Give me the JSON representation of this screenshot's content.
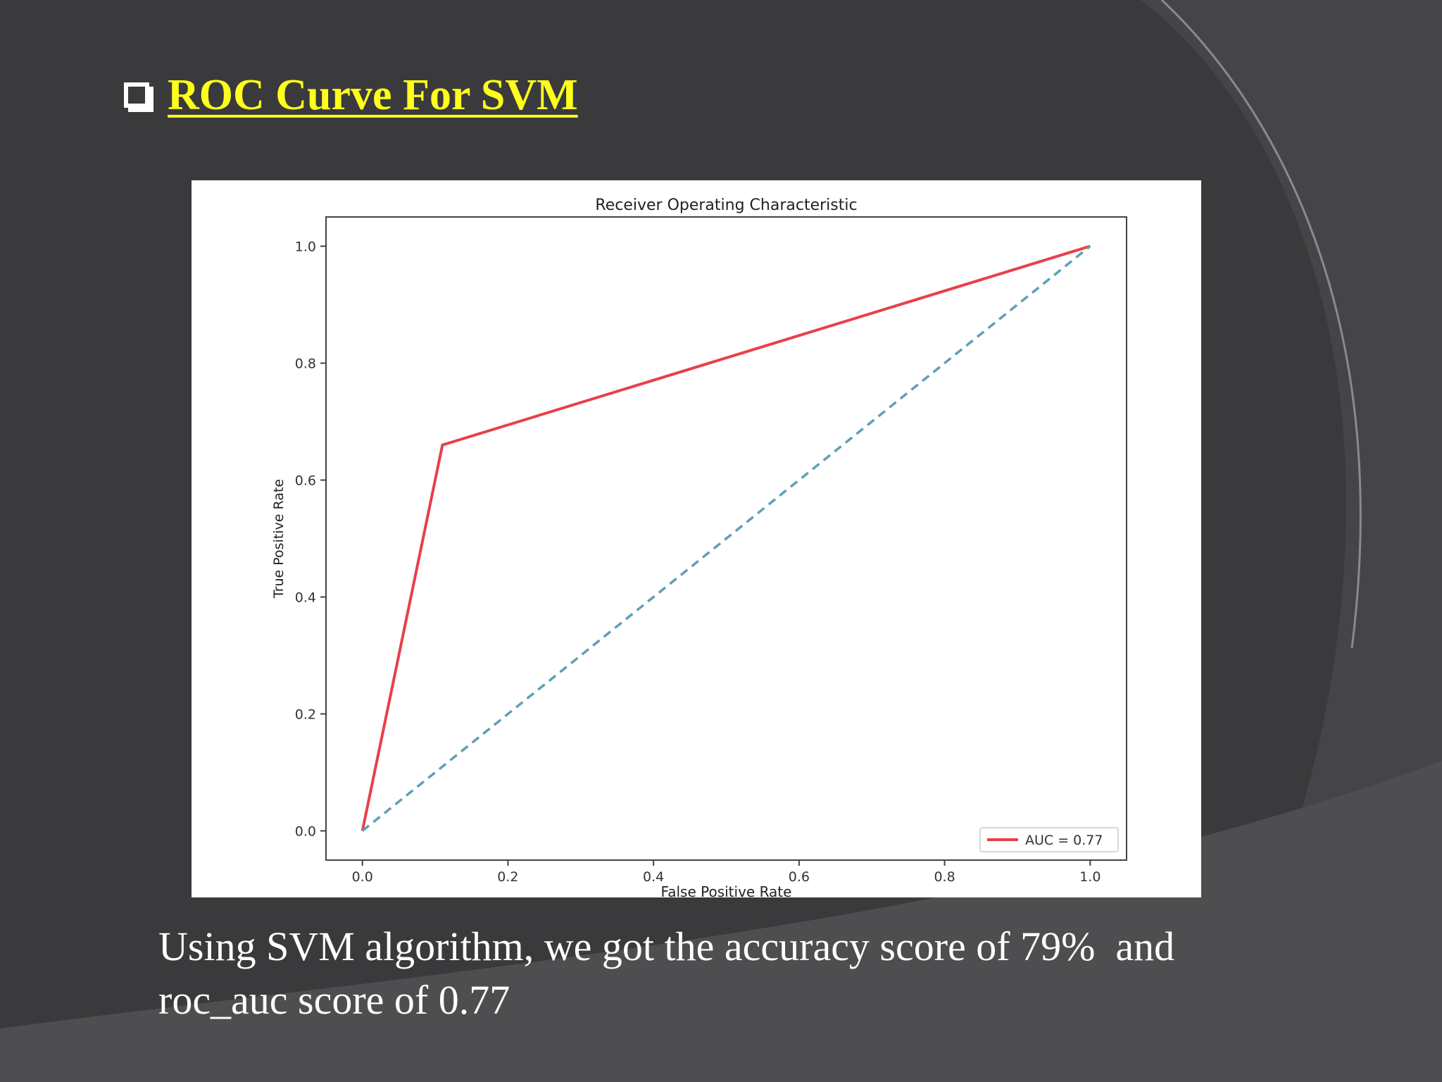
{
  "slide": {
    "heading": "ROC Curve For SVM",
    "caption_line1": "Using SVM algorithm, we got the accuracy score of 79%  and",
    "caption_line2": "roc_auc score of 0.77",
    "heading_color": "#ffff1a",
    "background_color": "#3a3a3c"
  },
  "chart_data": {
    "type": "line",
    "title": "Receiver Operating Characteristic",
    "xlabel": "False Positive Rate",
    "ylabel": "True Positive Rate",
    "xlim": [
      -0.05,
      1.05
    ],
    "ylim": [
      -0.05,
      1.05
    ],
    "xticks": [
      "0.0",
      "0.2",
      "0.4",
      "0.6",
      "0.8",
      "1.0"
    ],
    "yticks": [
      "0.0",
      "0.2",
      "0.4",
      "0.6",
      "0.8",
      "1.0"
    ],
    "grid": false,
    "legend_position": "lower-right",
    "series": [
      {
        "name": "AUC = 0.77",
        "x": [
          0.0,
          0.11,
          1.0
        ],
        "y": [
          0.0,
          0.66,
          1.0
        ],
        "color": "#e8404a",
        "style": "solid"
      },
      {
        "x": [
          0.0,
          1.0
        ],
        "y": [
          0.0,
          1.0
        ],
        "color": "#5f9fb8",
        "style": "dashed"
      }
    ]
  }
}
